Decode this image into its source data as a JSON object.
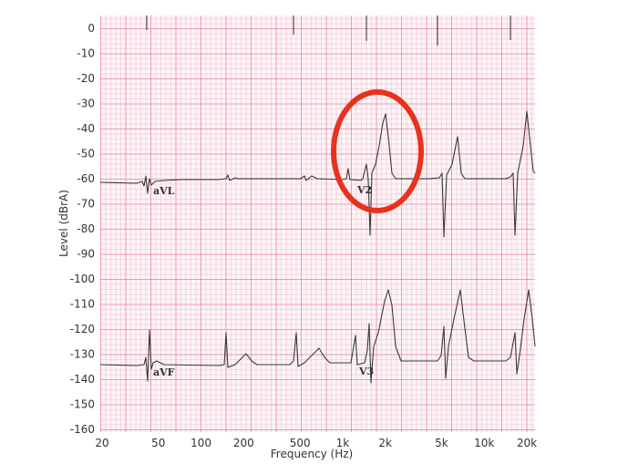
{
  "chart_data": {
    "type": "line",
    "title": "",
    "xlabel": "Frequency (Hz)",
    "ylabel": "Level (dBrA)",
    "xscale": "log",
    "xlim": [
      20,
      20000
    ],
    "ylim": [
      -160,
      0
    ],
    "xticks": [
      20,
      50,
      100,
      200,
      500,
      1000,
      2000,
      5000,
      10000,
      20000
    ],
    "xtick_labels": [
      "20",
      "50",
      "100",
      "200",
      "500",
      "1k",
      "2k",
      "5k",
      "10k",
      "20k"
    ],
    "yticks": [
      0,
      -10,
      -20,
      -30,
      -40,
      -50,
      -60,
      -70,
      -80,
      -90,
      -100,
      -110,
      -120,
      -130,
      -140,
      -150,
      -160
    ],
    "grid": true,
    "background": "ECG paper grid",
    "annotations": [
      "aVL",
      "V2",
      "aVF",
      "V3"
    ],
    "highlight": {
      "shape": "ellipse",
      "target": "V2",
      "color": "#e8321e"
    },
    "trace_color": "#333333",
    "grid_color": "#e06e96"
  }
}
